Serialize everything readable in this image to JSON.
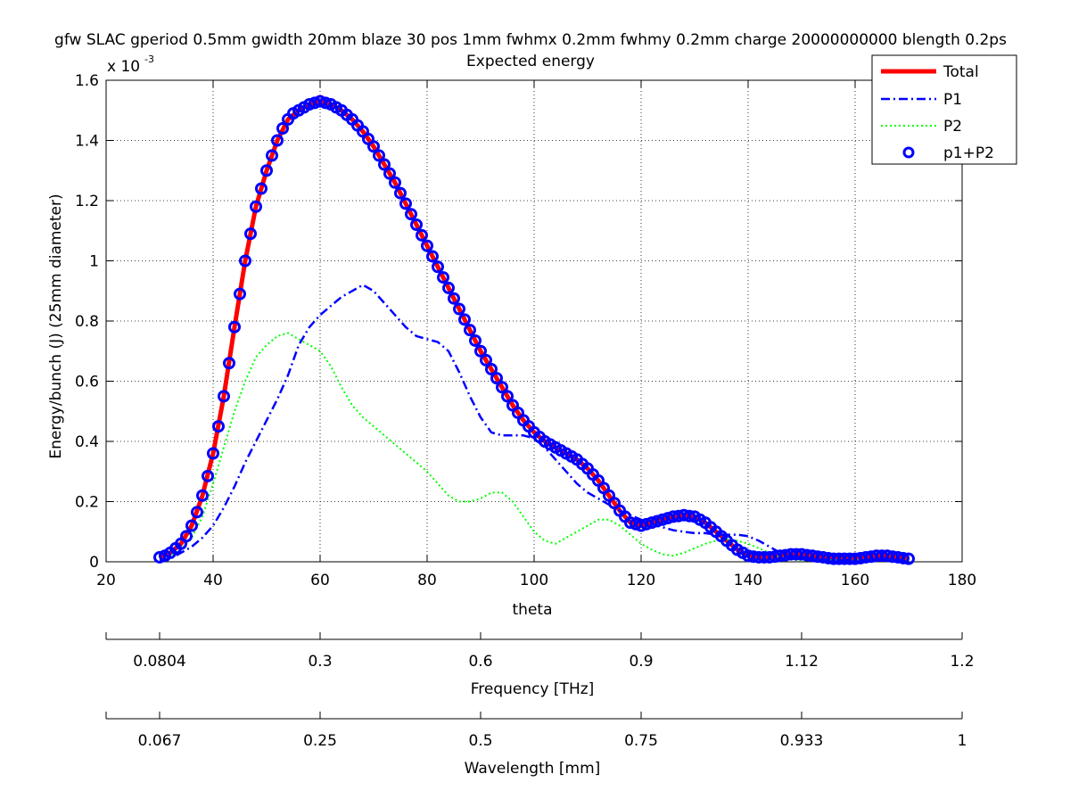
{
  "chart_data": {
    "type": "line",
    "title": "gfw SLAC gperiod 0.5mm gwidth 20mm blaze 30 pos 1mm fwhmx 0.2mm fwhmy 0.2mm charge 20000000000 blength 0.2ps",
    "subtitle": "Expected energy",
    "xlabel": "theta",
    "ylabel": "Energy/bunch (J) (25mm diameter)",
    "exponent_base": "x 10",
    "exponent_power": "-3",
    "xlim": [
      20,
      180
    ],
    "ylim": [
      0,
      1.6
    ],
    "x_ticks": [
      "20",
      "40",
      "60",
      "80",
      "100",
      "120",
      "140",
      "160",
      "180"
    ],
    "y_ticks": [
      "0",
      "0.2",
      "0.4",
      "0.6",
      "0.8",
      "1",
      "1.2",
      "1.4",
      "1.6"
    ],
    "y_scale_note": "values in units of 1e-3 J",
    "grid": true,
    "legend_position": "top-right",
    "series": [
      {
        "name": "Total",
        "color": "#ff0000",
        "style": "solid",
        "x": [
          30,
          32,
          34,
          36,
          38,
          40,
          42,
          44,
          46,
          48,
          50,
          52,
          54,
          56,
          58,
          60,
          62,
          64,
          66,
          68,
          70,
          72,
          74,
          76,
          78,
          80,
          82,
          84,
          86,
          88,
          90,
          92,
          94,
          96,
          98,
          100,
          102,
          104,
          106,
          108,
          110,
          112,
          114,
          116,
          118,
          120,
          122,
          124,
          126,
          128,
          130,
          132,
          134,
          136,
          138,
          140,
          142,
          144,
          146,
          148,
          150,
          152,
          154,
          156,
          158,
          160,
          162,
          164,
          166,
          168,
          170
        ],
        "values": [
          0.015,
          0.03,
          0.06,
          0.12,
          0.22,
          0.36,
          0.55,
          0.78,
          1.0,
          1.18,
          1.3,
          1.4,
          1.47,
          1.5,
          1.52,
          1.53,
          1.52,
          1.5,
          1.47,
          1.43,
          1.38,
          1.32,
          1.26,
          1.19,
          1.12,
          1.05,
          0.98,
          0.91,
          0.84,
          0.77,
          0.7,
          0.64,
          0.58,
          0.52,
          0.47,
          0.43,
          0.4,
          0.38,
          0.36,
          0.34,
          0.31,
          0.27,
          0.22,
          0.17,
          0.13,
          0.12,
          0.13,
          0.14,
          0.15,
          0.155,
          0.15,
          0.13,
          0.1,
          0.07,
          0.04,
          0.02,
          0.015,
          0.015,
          0.02,
          0.025,
          0.025,
          0.02,
          0.015,
          0.01,
          0.01,
          0.01,
          0.015,
          0.02,
          0.02,
          0.015,
          0.01
        ]
      },
      {
        "name": "P1",
        "color": "#0000ff",
        "style": "dashdot",
        "x": [
          30,
          32,
          34,
          36,
          38,
          40,
          42,
          44,
          46,
          48,
          50,
          52,
          54,
          56,
          58,
          60,
          62,
          64,
          66,
          68,
          70,
          72,
          74,
          76,
          78,
          80,
          82,
          84,
          86,
          88,
          90,
          92,
          94,
          96,
          98,
          100,
          102,
          104,
          106,
          108,
          110,
          112,
          114,
          116,
          118,
          120,
          122,
          124,
          126,
          128,
          130,
          132,
          134,
          136,
          138,
          140,
          142,
          144,
          146,
          148,
          150,
          152,
          154,
          156,
          158,
          160,
          162,
          164,
          166,
          168,
          170
        ],
        "values": [
          0.005,
          0.01,
          0.03,
          0.05,
          0.08,
          0.12,
          0.18,
          0.25,
          0.33,
          0.4,
          0.47,
          0.54,
          0.62,
          0.72,
          0.78,
          0.82,
          0.85,
          0.88,
          0.9,
          0.92,
          0.9,
          0.86,
          0.82,
          0.78,
          0.75,
          0.74,
          0.73,
          0.7,
          0.63,
          0.55,
          0.48,
          0.43,
          0.42,
          0.42,
          0.42,
          0.41,
          0.38,
          0.34,
          0.3,
          0.26,
          0.23,
          0.21,
          0.19,
          0.17,
          0.155,
          0.14,
          0.125,
          0.115,
          0.105,
          0.1,
          0.095,
          0.095,
          0.09,
          0.09,
          0.09,
          0.085,
          0.07,
          0.05,
          0.03,
          0.02,
          0.015,
          0.01,
          0.008,
          0.006,
          0.006,
          0.006,
          0.006,
          0.006,
          0.006,
          0.006,
          0.005
        ]
      },
      {
        "name": "P2",
        "color": "#00ff00",
        "style": "dotted",
        "x": [
          30,
          32,
          34,
          36,
          38,
          40,
          42,
          44,
          46,
          48,
          50,
          52,
          54,
          56,
          58,
          60,
          62,
          64,
          66,
          68,
          70,
          72,
          74,
          76,
          78,
          80,
          82,
          84,
          86,
          88,
          90,
          92,
          94,
          96,
          98,
          100,
          102,
          104,
          106,
          108,
          110,
          112,
          114,
          116,
          118,
          120,
          122,
          124,
          126,
          128,
          130,
          132,
          134,
          136,
          138,
          140,
          142,
          144,
          146,
          148,
          150,
          152,
          154,
          156,
          158,
          160,
          162,
          164,
          166,
          168,
          170
        ],
        "values": [
          0.01,
          0.02,
          0.04,
          0.08,
          0.15,
          0.26,
          0.38,
          0.5,
          0.6,
          0.68,
          0.72,
          0.75,
          0.76,
          0.74,
          0.72,
          0.7,
          0.65,
          0.58,
          0.52,
          0.48,
          0.45,
          0.42,
          0.39,
          0.36,
          0.33,
          0.3,
          0.26,
          0.22,
          0.2,
          0.2,
          0.21,
          0.23,
          0.23,
          0.2,
          0.15,
          0.1,
          0.07,
          0.06,
          0.08,
          0.1,
          0.12,
          0.14,
          0.14,
          0.12,
          0.09,
          0.06,
          0.04,
          0.025,
          0.02,
          0.03,
          0.045,
          0.06,
          0.07,
          0.075,
          0.07,
          0.06,
          0.045,
          0.03,
          0.015,
          0.008,
          0.005,
          0.005,
          0.005,
          0.005,
          0.005,
          0.005,
          0.005,
          0.005,
          0.005,
          0.005,
          0.005
        ]
      },
      {
        "name": "p1+P2",
        "color": "#0000ff",
        "style": "circles",
        "x": [
          30,
          31,
          32,
          33,
          34,
          35,
          36,
          37,
          38,
          39,
          40,
          41,
          42,
          43,
          44,
          45,
          46,
          47,
          48,
          49,
          50,
          51,
          52,
          53,
          54,
          55,
          56,
          57,
          58,
          59,
          60,
          61,
          62,
          63,
          64,
          65,
          66,
          67,
          68,
          69,
          70,
          71,
          72,
          73,
          74,
          75,
          76,
          77,
          78,
          79,
          80,
          81,
          82,
          83,
          84,
          85,
          86,
          87,
          88,
          89,
          90,
          91,
          92,
          93,
          94,
          95,
          96,
          97,
          98,
          99,
          100,
          101,
          102,
          103,
          104,
          105,
          106,
          107,
          108,
          109,
          110,
          111,
          112,
          113,
          114,
          115,
          116,
          117,
          118,
          119,
          120,
          121,
          122,
          123,
          124,
          125,
          126,
          127,
          128,
          129,
          130,
          131,
          132,
          133,
          134,
          135,
          136,
          137,
          138,
          139,
          140,
          141,
          142,
          143,
          144,
          145,
          146,
          147,
          148,
          149,
          150,
          151,
          152,
          153,
          154,
          155,
          156,
          157,
          158,
          159,
          160,
          161,
          162,
          163,
          164,
          165,
          166,
          167,
          168,
          169,
          170
        ],
        "values": [
          0.015,
          0.02,
          0.03,
          0.045,
          0.06,
          0.085,
          0.12,
          0.165,
          0.22,
          0.285,
          0.36,
          0.45,
          0.55,
          0.66,
          0.78,
          0.89,
          1.0,
          1.09,
          1.18,
          1.24,
          1.3,
          1.35,
          1.4,
          1.44,
          1.47,
          1.49,
          1.5,
          1.51,
          1.52,
          1.525,
          1.53,
          1.525,
          1.52,
          1.51,
          1.5,
          1.485,
          1.47,
          1.45,
          1.43,
          1.405,
          1.38,
          1.35,
          1.32,
          1.29,
          1.26,
          1.225,
          1.19,
          1.155,
          1.12,
          1.085,
          1.05,
          1.015,
          0.98,
          0.945,
          0.91,
          0.875,
          0.84,
          0.805,
          0.77,
          0.735,
          0.7,
          0.67,
          0.64,
          0.61,
          0.58,
          0.55,
          0.52,
          0.495,
          0.47,
          0.45,
          0.43,
          0.415,
          0.4,
          0.39,
          0.38,
          0.37,
          0.36,
          0.35,
          0.34,
          0.325,
          0.31,
          0.29,
          0.27,
          0.245,
          0.22,
          0.195,
          0.17,
          0.15,
          0.13,
          0.125,
          0.12,
          0.125,
          0.13,
          0.135,
          0.14,
          0.145,
          0.15,
          0.152,
          0.155,
          0.152,
          0.15,
          0.14,
          0.13,
          0.115,
          0.1,
          0.085,
          0.07,
          0.055,
          0.04,
          0.03,
          0.02,
          0.017,
          0.015,
          0.015,
          0.015,
          0.017,
          0.02,
          0.022,
          0.025,
          0.025,
          0.025,
          0.022,
          0.02,
          0.017,
          0.015,
          0.012,
          0.01,
          0.01,
          0.01,
          0.01,
          0.01,
          0.012,
          0.015,
          0.017,
          0.02,
          0.02,
          0.02,
          0.017,
          0.015,
          0.012,
          0.01
        ]
      }
    ],
    "secondary_axes": [
      {
        "label": "Frequency [THz]",
        "tick_labels": [
          "0.0804",
          "0.3",
          "0.6",
          "0.9",
          "1.12",
          "1.2"
        ],
        "tick_positions_theta": [
          30,
          60,
          90,
          120,
          150,
          180
        ]
      },
      {
        "label": "Wavelength [mm]",
        "tick_labels": [
          "0.067",
          "0.25",
          "0.5",
          "0.75",
          "0.933",
          "1"
        ],
        "tick_positions_theta": [
          30,
          60,
          90,
          120,
          150,
          180
        ]
      }
    ]
  }
}
